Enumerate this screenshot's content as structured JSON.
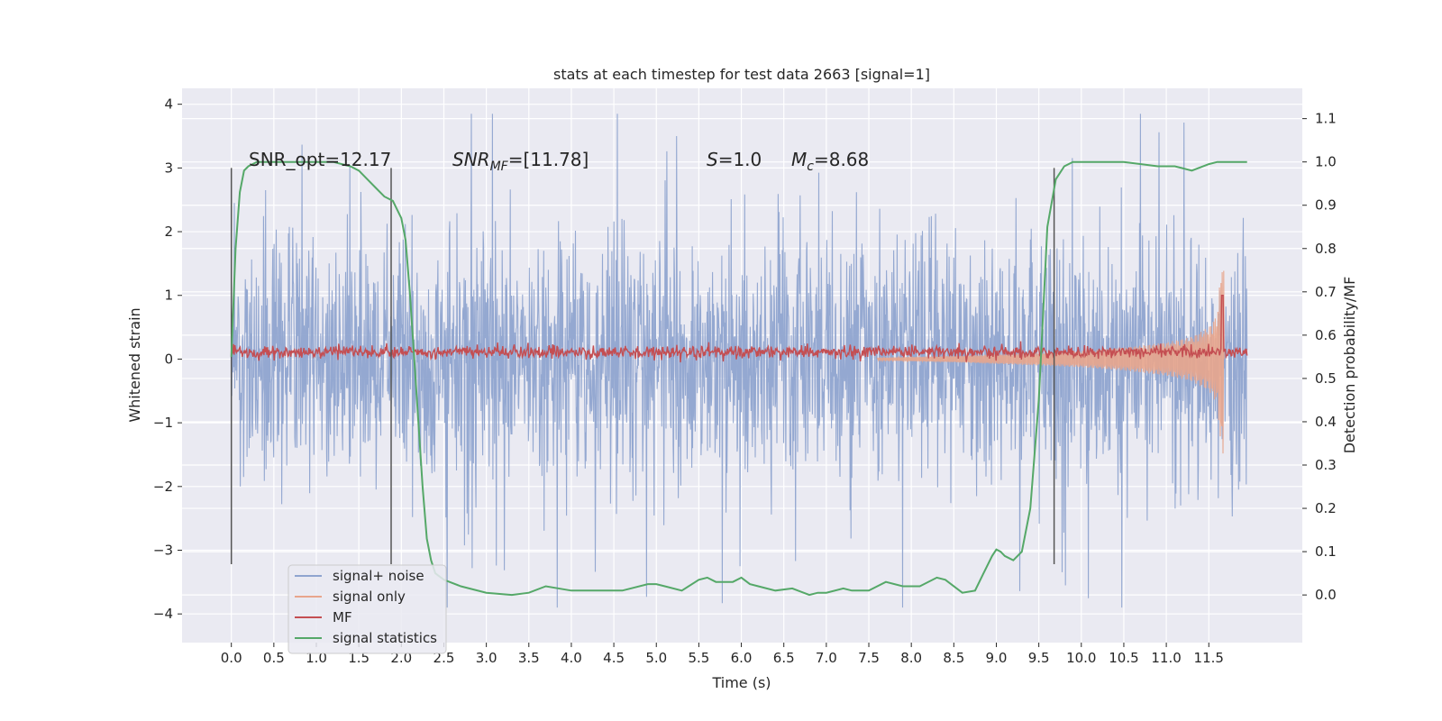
{
  "chart_data": {
    "type": "line",
    "title": "stats at each timestep for test data 2663 [signal=1]",
    "xlabel": "Time (s)",
    "ylabel_left": "Whitened strain",
    "ylabel_right": "Detection probability/MF",
    "xlim": [
      -0.58,
      12.6
    ],
    "ylim_left": [
      -4.45,
      4.25
    ],
    "ylim_right": [
      -0.11,
      1.17
    ],
    "x_ticks": [
      "0.0",
      "0.5",
      "1.0",
      "1.5",
      "2.0",
      "2.5",
      "3.0",
      "3.5",
      "4.0",
      "4.5",
      "5.0",
      "5.5",
      "6.0",
      "6.5",
      "7.0",
      "7.5",
      "8.0",
      "8.5",
      "9.0",
      "9.5",
      "10.0",
      "10.5",
      "11.0",
      "11.5"
    ],
    "y_ticks_left": [
      "4",
      "3",
      "2",
      "1",
      "0",
      "−1",
      "−2",
      "−3",
      "−4"
    ],
    "y_ticks_right": [
      "1.1",
      "1.0",
      "0.9",
      "0.8",
      "0.7",
      "0.6",
      "0.5",
      "0.4",
      "0.3",
      "0.2",
      "0.1",
      "0.0"
    ],
    "annotations": {
      "snr_opt": "SNR_opt=12.17",
      "snr_mf_label": "SNR",
      "snr_mf_sub": "MF",
      "snr_mf_value": "=[11.78]",
      "s_label": "S",
      "s_value": "=1.0",
      "mc_label": "M",
      "mc_sub": "c",
      "mc_value": "=8.68"
    },
    "vlines_x": [
      0.0,
      1.88,
      9.68
    ],
    "series": [
      {
        "name": "signal+ noise",
        "color": "#8fa4cf",
        "description": "whitened strain noise band, roughly between -3 and 3 with spikes to ±3.9, spanning 0.0 to 11.95 s"
      },
      {
        "name": "signal only",
        "color": "#e8a58c",
        "envelope": {
          "x": [
            7.6,
            8.5,
            9.5,
            10.0,
            10.5,
            11.0,
            11.3,
            11.5,
            11.6,
            11.66,
            11.68
          ],
          "amp": [
            0.02,
            0.05,
            0.1,
            0.13,
            0.18,
            0.26,
            0.35,
            0.5,
            0.7,
            1.7,
            1.3
          ]
        }
      },
      {
        "name": "MF",
        "color": "#c44e52",
        "description": "matched-filter output near 0.1 on the left axis with small fluctuations"
      },
      {
        "name": "signal statistics",
        "color": "#55a868",
        "x": [
          0.0,
          0.05,
          0.1,
          0.15,
          0.2,
          0.3,
          0.5,
          0.8,
          1.0,
          1.2,
          1.4,
          1.5,
          1.6,
          1.7,
          1.8,
          1.9,
          2.0,
          2.05,
          2.1,
          2.15,
          2.2,
          2.25,
          2.3,
          2.35,
          2.4,
          2.5,
          2.7,
          3.0,
          3.3,
          3.5,
          3.7,
          4.0,
          4.3,
          4.6,
          4.9,
          5.0,
          5.1,
          5.3,
          5.5,
          5.6,
          5.7,
          5.9,
          6.0,
          6.1,
          6.2,
          6.4,
          6.6,
          6.8,
          6.9,
          7.0,
          7.2,
          7.3,
          7.5,
          7.7,
          7.9,
          8.1,
          8.3,
          8.4,
          8.6,
          8.75,
          8.85,
          8.95,
          9.0,
          9.05,
          9.1,
          9.2,
          9.3,
          9.4,
          9.5,
          9.55,
          9.6,
          9.7,
          9.8,
          9.9,
          10.0,
          10.5,
          10.9,
          11.1,
          11.2,
          11.3,
          11.5,
          11.6,
          11.8,
          11.95
        ],
        "y": [
          0.55,
          0.8,
          0.93,
          0.98,
          0.99,
          1.0,
          1.0,
          1.0,
          1.0,
          1.0,
          0.99,
          0.98,
          0.96,
          0.94,
          0.92,
          0.91,
          0.87,
          0.82,
          0.7,
          0.55,
          0.4,
          0.25,
          0.13,
          0.08,
          0.05,
          0.035,
          0.02,
          0.005,
          0.0,
          0.005,
          0.02,
          0.01,
          0.01,
          0.01,
          0.025,
          0.025,
          0.02,
          0.01,
          0.035,
          0.04,
          0.03,
          0.03,
          0.04,
          0.025,
          0.02,
          0.01,
          0.015,
          0.0,
          0.005,
          0.005,
          0.015,
          0.01,
          0.01,
          0.03,
          0.02,
          0.02,
          0.04,
          0.035,
          0.005,
          0.01,
          0.05,
          0.09,
          0.105,
          0.1,
          0.09,
          0.08,
          0.1,
          0.2,
          0.45,
          0.65,
          0.85,
          0.96,
          0.99,
          1.0,
          1.0,
          1.0,
          0.99,
          0.99,
          0.985,
          0.98,
          0.995,
          1.0,
          1.0,
          1.0
        ]
      }
    ],
    "legend": {
      "position": "lower-left",
      "entries": [
        {
          "label": "signal+ noise",
          "color": "#8fa4cf"
        },
        {
          "label": "signal only",
          "color": "#e8a58c"
        },
        {
          "label": "MF",
          "color": "#c44e52"
        },
        {
          "label": "signal statistics",
          "color": "#55a868"
        }
      ]
    }
  }
}
